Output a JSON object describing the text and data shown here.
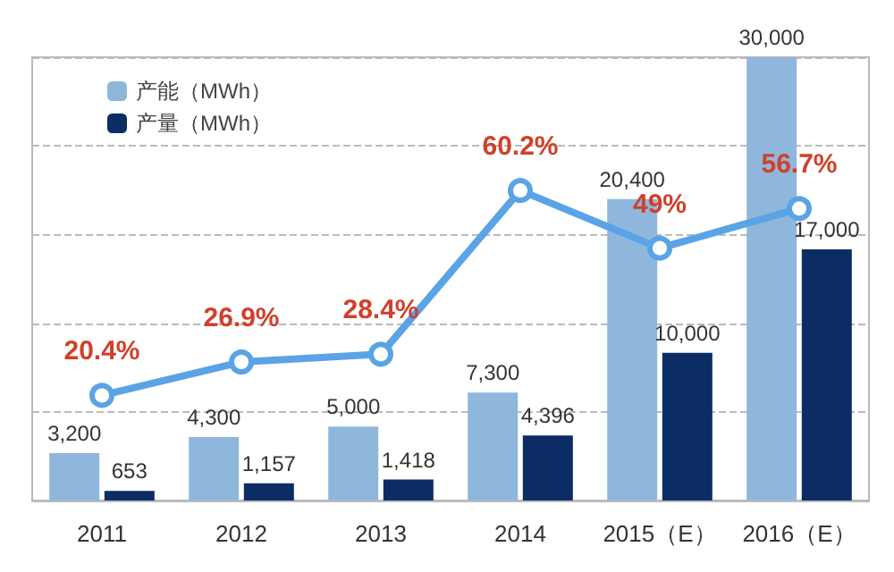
{
  "chart_data": {
    "type": "bar",
    "categories": [
      "2011",
      "2012",
      "2013",
      "2014",
      "2015（E）",
      "2016（E）"
    ],
    "series": [
      {
        "name": "产能（MWh）",
        "color": "#8fb7dc",
        "values": [
          3200,
          4300,
          5000,
          7300,
          20400,
          30000
        ],
        "value_labels": [
          "3,200",
          "4,300",
          "5,000",
          "7,300",
          "20,400",
          "30,000"
        ]
      },
      {
        "name": "产量（MWh）",
        "color": "#0b2d63",
        "values": [
          653,
          1157,
          1418,
          4396,
          10000,
          17000
        ],
        "value_labels": [
          "653",
          "1,157",
          "1,418",
          "4,396",
          "10,000",
          "17,000"
        ]
      },
      {
        "type": "line",
        "axis": "y2",
        "color": "#5aa3e6",
        "values": [
          20.4,
          26.9,
          28.4,
          60.2,
          49,
          56.7
        ],
        "value_labels": [
          "20.4%",
          "26.9%",
          "28.4%",
          "60.2%",
          "49%",
          "56.7%"
        ]
      }
    ],
    "ylim": [
      0,
      30000
    ],
    "yticks": [
      {
        "value": 0,
        "label": null
      },
      {
        "value": 6000,
        "label": null
      },
      {
        "value": 12000,
        "label": null
      },
      {
        "value": 18000,
        "label": null
      },
      {
        "value": 24000,
        "label": null
      },
      {
        "value": 30000,
        "label": null
      }
    ],
    "tick_labels": "x",
    "grid": "y",
    "legend": "top left",
    "marker": "circle"
  }
}
